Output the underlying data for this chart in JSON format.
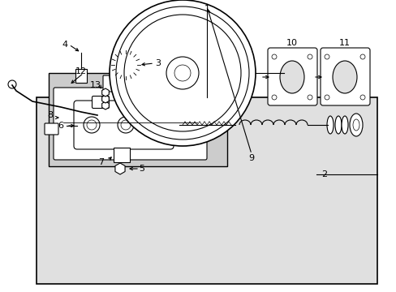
{
  "bg_color": "#ffffff",
  "outer_box_bg": "#e0e0e0",
  "inner_box_bg": "#cccccc",
  "line_color": "#000000",
  "fig_width": 4.89,
  "fig_height": 3.6,
  "dpi": 100,
  "font_size": 8
}
